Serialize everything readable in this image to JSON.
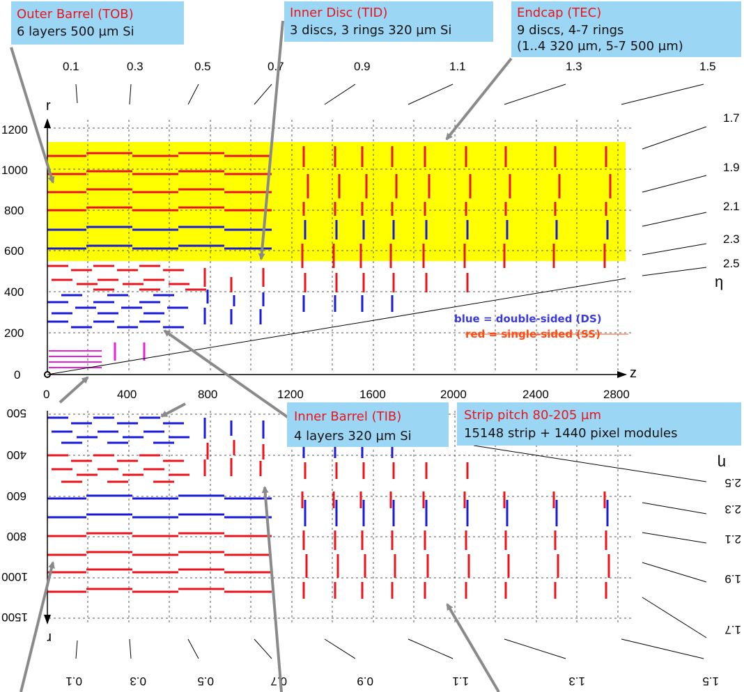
{
  "callouts": {
    "tob": {
      "title": "Outer Barrel (TOB)",
      "line1": "6 layers 500 µm Si"
    },
    "tid": {
      "title": "Inner Disc (TID)",
      "line1": "3 discs, 3 rings 320 µm Si"
    },
    "tec": {
      "title": "Endcap (TEC)",
      "line1": "9 discs, 4-7 rings",
      "line2": "(1..4 320 µm, 5-7 500 µm)"
    },
    "tib": {
      "title": "Inner Barrel (TIB)",
      "line1": "4 layers 320 µm Si"
    },
    "pitch": {
      "title": "Strip pitch 80-205 µm",
      "line1": "15148 strip + 1440 pixel modules"
    }
  },
  "axes": {
    "r_label": "r",
    "z_label": "z",
    "eta_label": "η",
    "r_ticks": [
      "1200",
      "1000",
      "800",
      "600",
      "400",
      "200",
      "0"
    ],
    "z_ticks": [
      "0",
      "400",
      "800",
      "1200",
      "1600",
      "2000",
      "2400",
      "2800"
    ],
    "mirror_r_ticks": [
      "500",
      "400",
      "600",
      "800",
      "1000",
      "1500"
    ],
    "eta_top": [
      "0.1",
      "0.3",
      "0.5",
      "0.7",
      "0.9",
      "1.1",
      "1.3",
      "1.5"
    ],
    "eta_right": [
      "1.7",
      "1.9",
      "2.1",
      "2.3",
      "2.5"
    ]
  },
  "legend": {
    "blue": "blue = double-sided (DS)",
    "red": "red = single-sided (SS)"
  },
  "colors": {
    "single_sided": "#e8141c",
    "double_sided": "#1a1ad6",
    "pixel": "#e81ee0",
    "endcap_region": "#ffff00",
    "callout_bg": "#9bd7f5",
    "arrow": "#8a8a8a"
  }
}
